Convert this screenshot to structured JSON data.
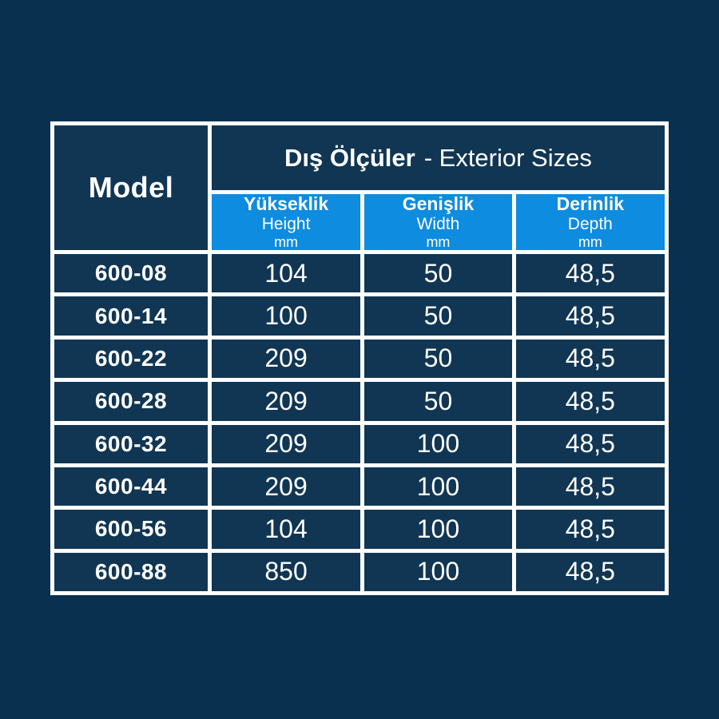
{
  "page": {
    "background_color": "#0a304f",
    "cell_color": "#113653",
    "accent_blue": "#0e8cdf",
    "border_color": "#ffffff",
    "text_color": "#ffffff"
  },
  "table": {
    "model_header": "Model",
    "title_tr": "Dış Ölçüler",
    "title_en": "- Exterior Sizes",
    "columns": [
      {
        "tr": "Yükseklik",
        "en": "Height",
        "unit": "mm"
      },
      {
        "tr": "Genişlik",
        "en": "Width",
        "unit": "mm"
      },
      {
        "tr": "Derinlik",
        "en": "Depth",
        "unit": "mm"
      }
    ],
    "rows": [
      {
        "model": "600-08",
        "height": "104",
        "width": "50",
        "depth": "48,5"
      },
      {
        "model": "600-14",
        "height": "100",
        "width": "50",
        "depth": "48,5"
      },
      {
        "model": "600-22",
        "height": "209",
        "width": "50",
        "depth": "48,5"
      },
      {
        "model": "600-28",
        "height": "209",
        "width": "50",
        "depth": "48,5"
      },
      {
        "model": "600-32",
        "height": "209",
        "width": "100",
        "depth": "48,5"
      },
      {
        "model": "600-44",
        "height": "209",
        "width": "100",
        "depth": "48,5"
      },
      {
        "model": "600-56",
        "height": "104",
        "width": "100",
        "depth": "48,5"
      },
      {
        "model": "600-88",
        "height": "850",
        "width": "100",
        "depth": "48,5"
      }
    ]
  },
  "chart_data": {
    "type": "table",
    "title": "Dış Ölçüler - Exterior Sizes",
    "columns": [
      "Model",
      "Yükseklik Height mm",
      "Genişlik Width mm",
      "Derinlik Depth mm"
    ],
    "rows": [
      [
        "600-08",
        "104",
        "50",
        "48,5"
      ],
      [
        "600-14",
        "100",
        "50",
        "48,5"
      ],
      [
        "600-22",
        "209",
        "50",
        "48,5"
      ],
      [
        "600-28",
        "209",
        "50",
        "48,5"
      ],
      [
        "600-32",
        "209",
        "100",
        "48,5"
      ],
      [
        "600-44",
        "209",
        "100",
        "48,5"
      ],
      [
        "600-56",
        "104",
        "100",
        "48,5"
      ],
      [
        "600-88",
        "850",
        "100",
        "48,5"
      ]
    ],
    "layout": {
      "grid": true,
      "header_accent": "#0e8cdf"
    }
  }
}
